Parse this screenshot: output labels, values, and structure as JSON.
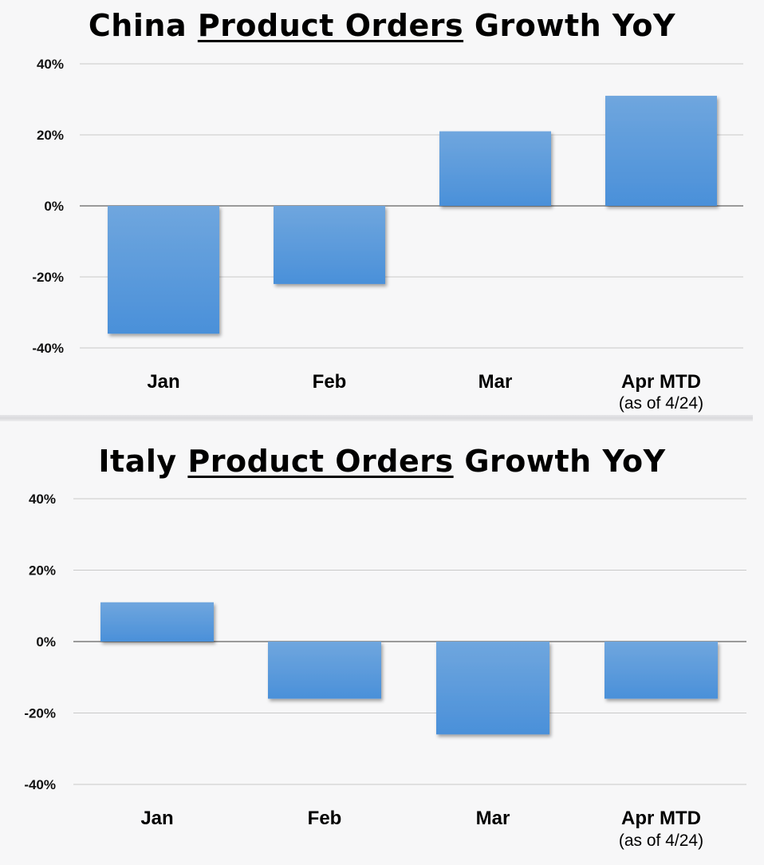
{
  "chart_data": [
    {
      "type": "bar",
      "title": {
        "part1": "China",
        "underlined": "Product Orders",
        "part2": "Growth YoY"
      },
      "categories": [
        "Jan",
        "Feb",
        "Mar",
        "Apr MTD"
      ],
      "category_sublabels": [
        "",
        "",
        "",
        "(as of 4/24)"
      ],
      "values": [
        -36,
        -22,
        21,
        31
      ],
      "ylim": [
        -40,
        40
      ],
      "yticks": [
        "40%",
        "20%",
        "0%",
        "-20%",
        "-40%"
      ],
      "grid": true,
      "bar_color": "#4a90d9"
    },
    {
      "type": "bar",
      "title": {
        "part1": "Italy",
        "underlined": "Product Orders",
        "part2": "Growth YoY"
      },
      "categories": [
        "Jan",
        "Feb",
        "Mar",
        "Apr MTD"
      ],
      "category_sublabels": [
        "",
        "",
        "",
        "(as of 4/24)"
      ],
      "values": [
        11,
        -16,
        -26,
        -16
      ],
      "ylim": [
        -40,
        40
      ],
      "yticks": [
        "40%",
        "20%",
        "0%",
        "-20%",
        "-40%"
      ],
      "grid": true,
      "bar_color": "#4a90d9"
    }
  ]
}
